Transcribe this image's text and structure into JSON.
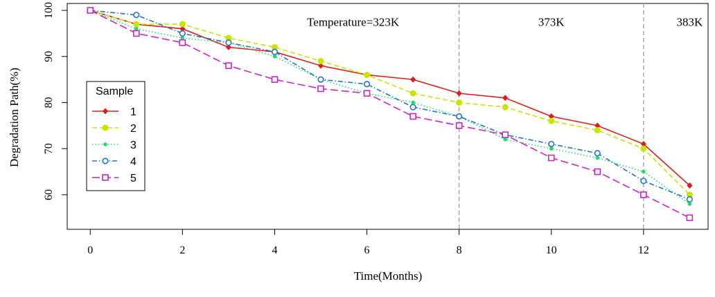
{
  "chart_data": {
    "type": "line",
    "title": "",
    "xlabel": "Time(Months)",
    "ylabel": "Degradation Path(%)",
    "xlim": [
      -0.5,
      13.4
    ],
    "ylim": [
      52.5,
      101.5
    ],
    "x_ticks": [
      "0",
      "2",
      "4",
      "6",
      "8",
      "10",
      "12"
    ],
    "y_ticks": [
      "60",
      "70",
      "80",
      "90",
      "100"
    ],
    "x": [
      0,
      1,
      2,
      3,
      4,
      5,
      6,
      7,
      8,
      9,
      10,
      11,
      12,
      13
    ],
    "series": [
      {
        "name": "1",
        "color": "#e31a1c",
        "marker": "diamond",
        "dash": "solid",
        "values": [
          100,
          97,
          96,
          92,
          91,
          88,
          86,
          85,
          82,
          81,
          77,
          75,
          71,
          62
        ]
      },
      {
        "name": "2",
        "color": "#c8e400",
        "marker": "dot",
        "dash": "dashed",
        "values": [
          100,
          97,
          97,
          94,
          92,
          89,
          86,
          82,
          80,
          79,
          76,
          74,
          70,
          60
        ]
      },
      {
        "name": "3",
        "color": "#22dd66",
        "marker": "small-dot",
        "dash": "dotted",
        "values": [
          100,
          96,
          94,
          93,
          90,
          85,
          82,
          80,
          77,
          72,
          70,
          68,
          65,
          58
        ]
      },
      {
        "name": "4",
        "color": "#1e73d2",
        "marker": "circle",
        "dash": "dotdash",
        "values": [
          100,
          99,
          95,
          93,
          91,
          85,
          84,
          79,
          77,
          73,
          71,
          69,
          63,
          59
        ]
      },
      {
        "name": "5",
        "color": "#cc22cc",
        "marker": "square",
        "dash": "longdash",
        "values": [
          100,
          95,
          93,
          88,
          85,
          83,
          82,
          77,
          75,
          73,
          68,
          65,
          60,
          55
        ]
      }
    ],
    "vlines": [
      8,
      12
    ],
    "annotations": [
      {
        "text": "Temperature=323K",
        "x": 5.7,
        "y": 97.5
      },
      {
        "text": "373K",
        "x": 10.0,
        "y": 97.5
      },
      {
        "text": "383K",
        "x": 13.0,
        "y": 97.5
      }
    ],
    "legend": {
      "title": "Sample",
      "position": "left"
    },
    "grid": false
  }
}
